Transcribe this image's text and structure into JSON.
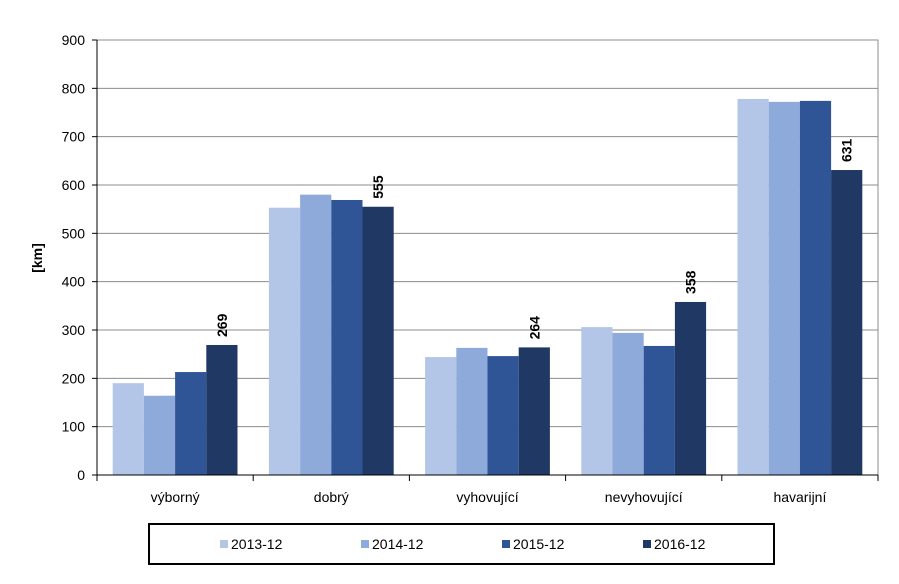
{
  "chart_data": {
    "type": "bar",
    "title": "",
    "xlabel": "",
    "ylabel": "[km]",
    "ylim": [
      0,
      900
    ],
    "yticks": [
      "0",
      "100",
      "200",
      "300",
      "400",
      "500",
      "600",
      "700",
      "800",
      "900"
    ],
    "grid": true,
    "legend": "bottom",
    "categories": [
      "výborný",
      "dobrý",
      "vyhovující",
      "nevyhovující",
      "havarijní"
    ],
    "series": [
      {
        "name": "2013-12",
        "color": "#b4c6e7",
        "values": [
          190,
          553,
          244,
          306,
          778
        ]
      },
      {
        "name": "2014-12",
        "color": "#8eaadb",
        "values": [
          164,
          580,
          263,
          294,
          772
        ]
      },
      {
        "name": "2015-12",
        "color": "#2f5597",
        "values": [
          213,
          569,
          246,
          267,
          774
        ]
      },
      {
        "name": "2016-12",
        "color": "#203864",
        "values": [
          269,
          555,
          264,
          358,
          631
        ],
        "labels": [
          "269",
          "555",
          "264",
          "358",
          "631"
        ]
      }
    ]
  }
}
